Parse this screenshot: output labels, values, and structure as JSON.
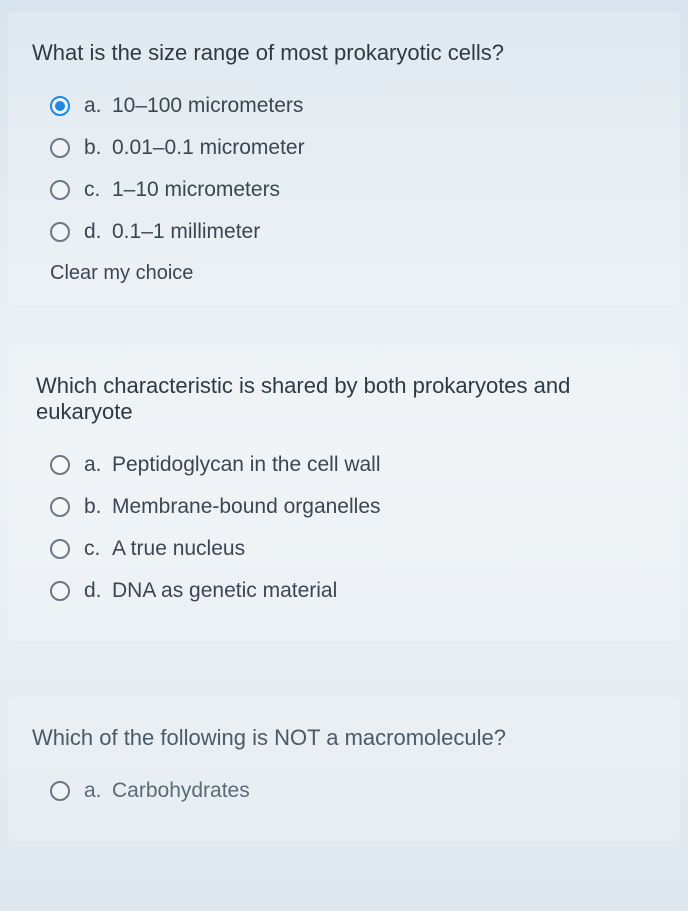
{
  "q1": {
    "question": "What is the size range of most prokaryotic cells?",
    "options": [
      {
        "letter": "a.",
        "text": "10–100 micrometers",
        "selected": true
      },
      {
        "letter": "b.",
        "text": "0.01–0.1 micrometer",
        "selected": false
      },
      {
        "letter": "c.",
        "text": "1–10 micrometers",
        "selected": false
      },
      {
        "letter": "d.",
        "text": "0.1–1 millimeter",
        "selected": false
      }
    ],
    "clear": "Clear my choice"
  },
  "q2": {
    "question": "Which characteristic is shared by both prokaryotes and eukaryote",
    "options": [
      {
        "letter": "a.",
        "text": "Peptidoglycan in the cell wall",
        "selected": false
      },
      {
        "letter": "b.",
        "text": "Membrane-bound organelles",
        "selected": false
      },
      {
        "letter": "c.",
        "text": "A true nucleus",
        "selected": false
      },
      {
        "letter": "d.",
        "text": "DNA as genetic material",
        "selected": false
      }
    ]
  },
  "q3": {
    "question": "Which of the following is NOT a macromolecule?",
    "options": [
      {
        "letter": "a.",
        "text": "Carbohydrates",
        "selected": false
      }
    ]
  },
  "colors": {
    "accent": "#1e88e5",
    "text": "#3a4752",
    "bg_top": "#d8e4ed",
    "bg_bottom": "#dfe8ef"
  }
}
